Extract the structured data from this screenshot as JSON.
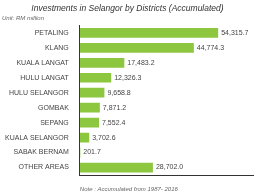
{
  "chart_data": {
    "type": "bar",
    "orientation": "horizontal",
    "title": "Investments in Selangor by Districts (Accumulated)",
    "subtitle": "Unit: RM million",
    "annotations": [
      "Note : Accumulated from 1987- 2016"
    ],
    "categories": [
      "PETALING",
      "KLANG",
      "KUALA LANGAT",
      "HULU LANGAT",
      "HULU SELANGOR",
      "GOMBAK",
      "SEPANG",
      "KUALA SELANGOR",
      "SABAK BERNAM",
      "OTHER AREAS"
    ],
    "values": [
      54315.7,
      44774.3,
      17483.2,
      12326.3,
      9658.8,
      7871.2,
      7552.4,
      3702.6,
      201.7,
      28702.0
    ],
    "value_labels": [
      "54,315.7",
      "44,774.3",
      "17,483.2",
      "12,326.3",
      "9,658.8",
      "7,871.2",
      "7,552.4",
      "3,702.6",
      "201.7",
      "28,702.0"
    ],
    "color": "#8dc63f",
    "xlim": [
      0,
      68000
    ],
    "data_labels": true,
    "tick_labels": "y",
    "grid": false
  }
}
